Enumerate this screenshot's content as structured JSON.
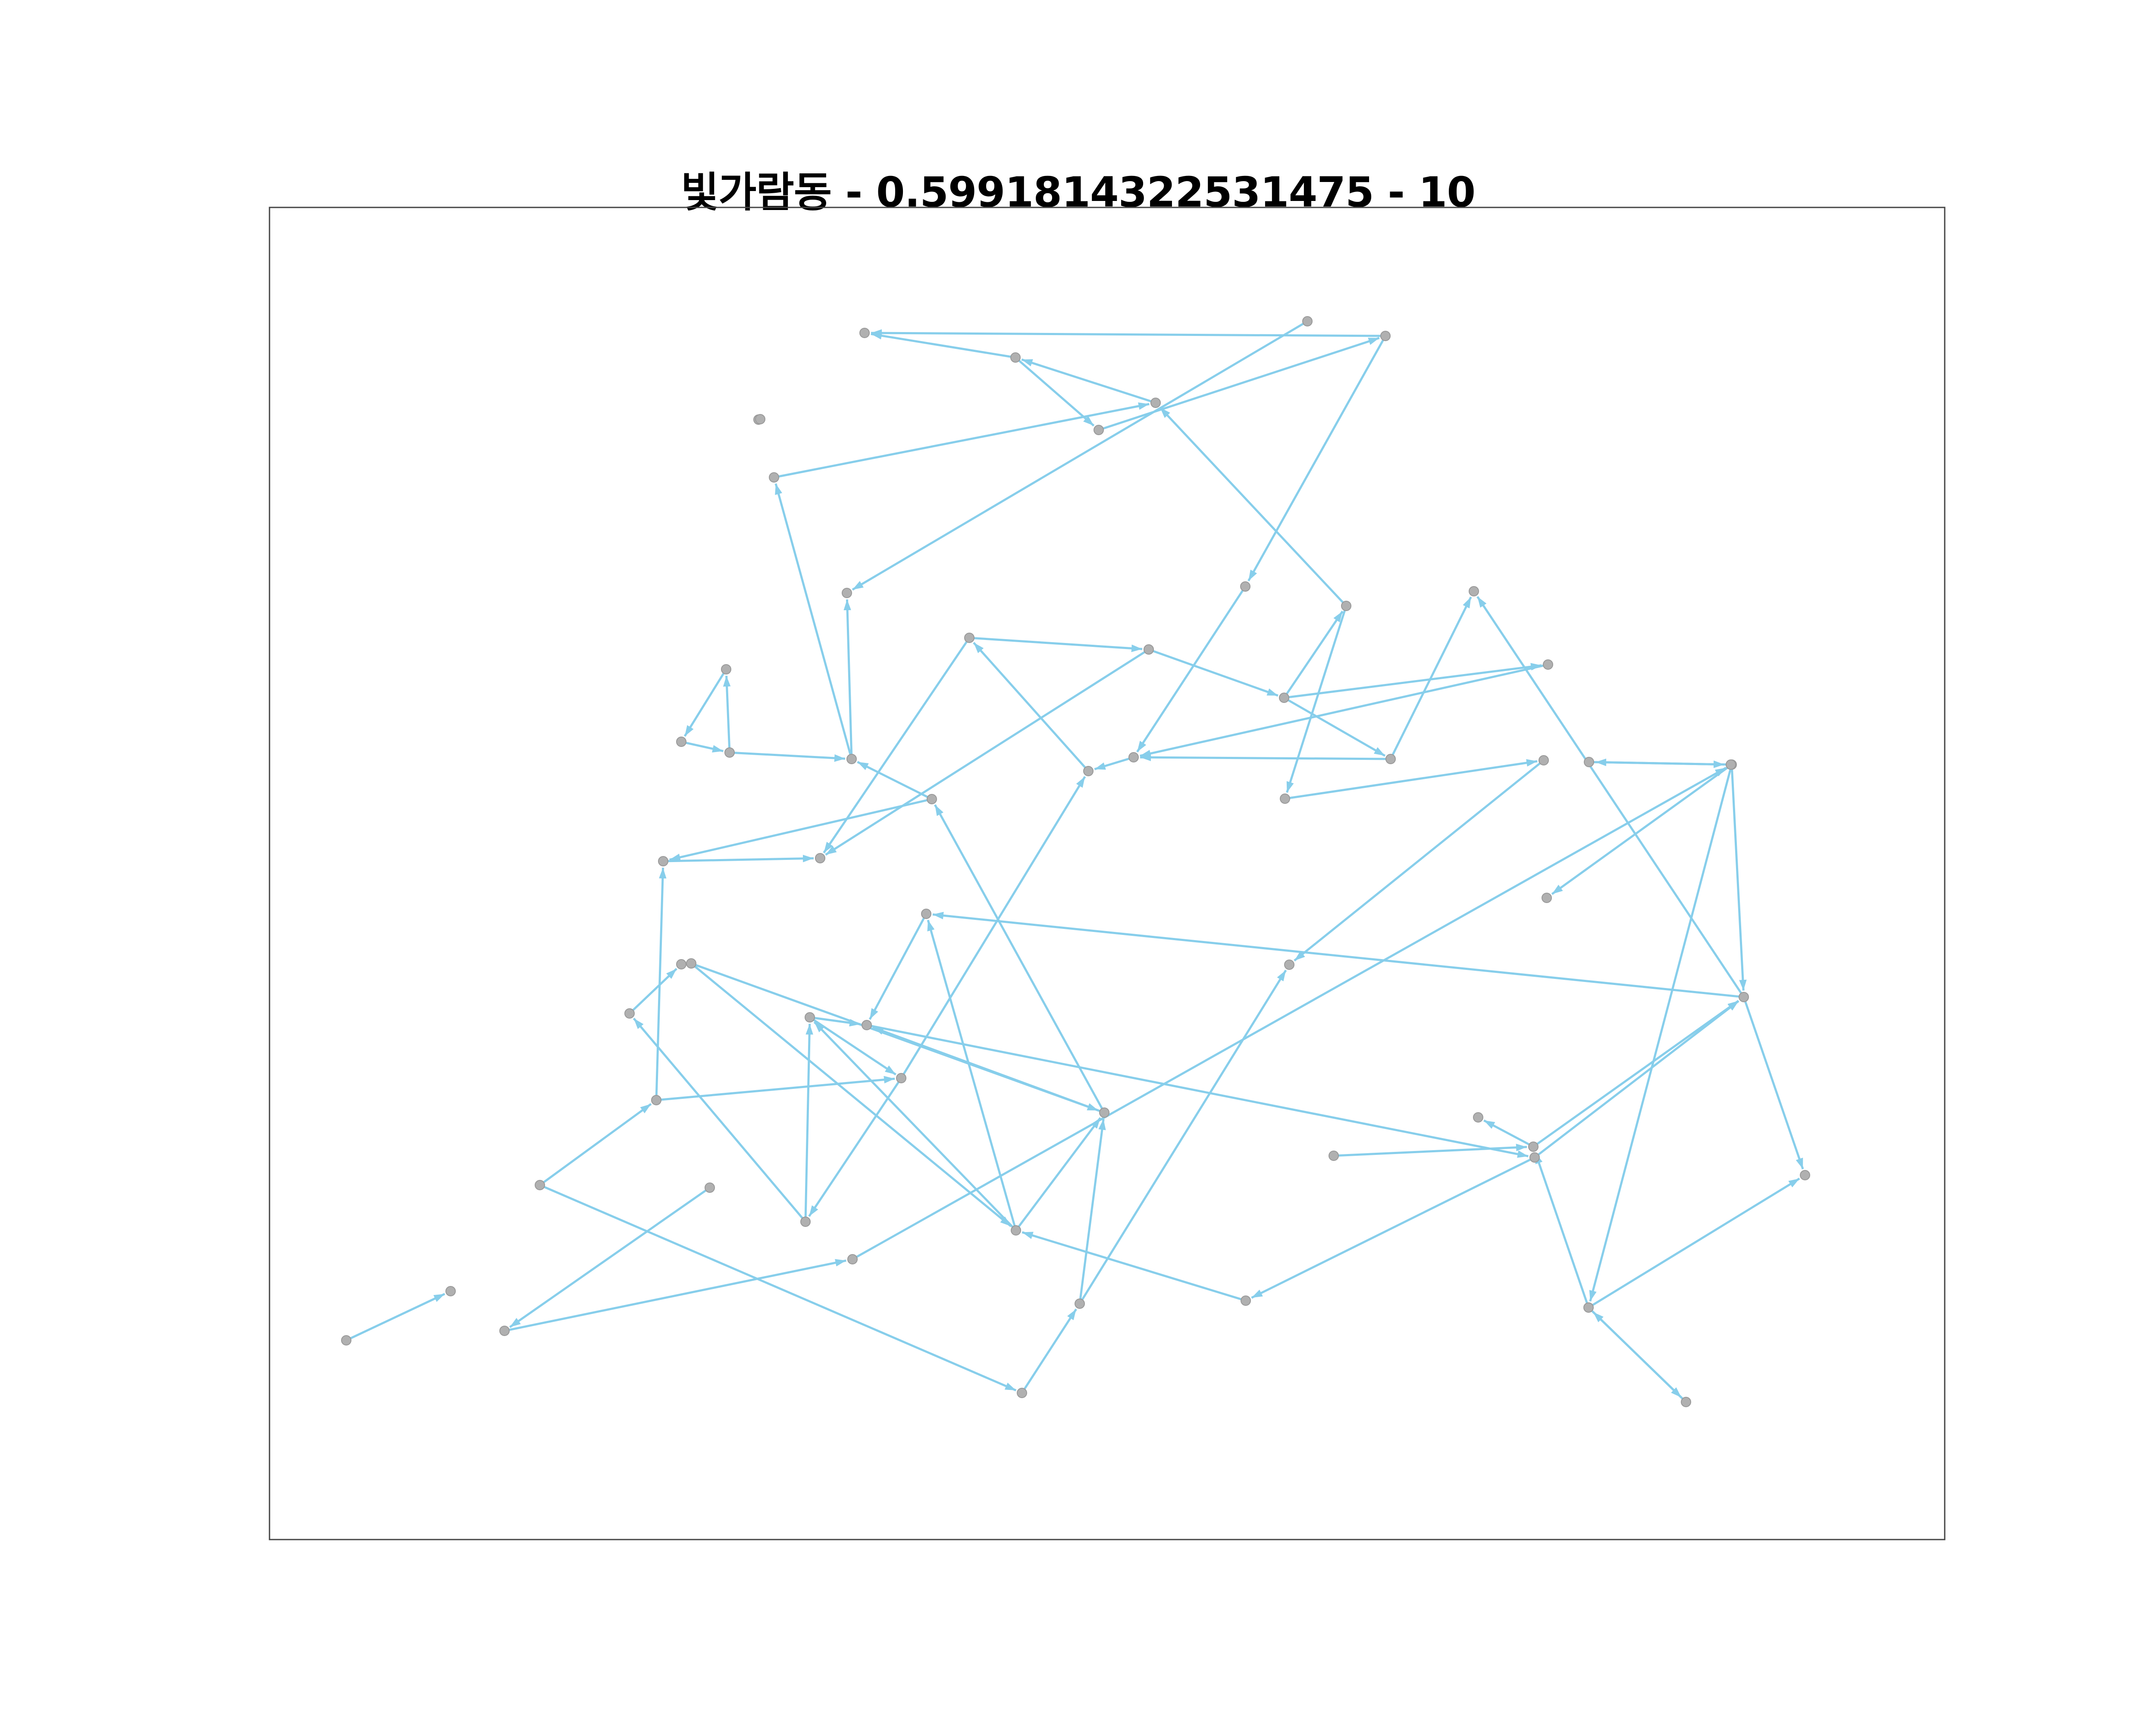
{
  "title": "빛가람동 - 0.5991814322531475 - 10",
  "colors": {
    "edge": "#87CEEB",
    "node_fill": "#b0b0b0",
    "node_stroke": "#999999",
    "frame": "#444444",
    "background": "#ffffff"
  },
  "graph": {
    "directed": true,
    "nodes": [
      "n1",
      "n2",
      "n3",
      "n4",
      "n5",
      "n6",
      "n7",
      "n8",
      "n9",
      "n10",
      "n11",
      "n12",
      "n13",
      "n14",
      "n15",
      "n16",
      "n17",
      "n18",
      "n19",
      "n20",
      "n21",
      "n22",
      "n23",
      "n24",
      "n25",
      "n26",
      "n27",
      "n28",
      "n29",
      "n30",
      "n31",
      "n32",
      "n33",
      "n34",
      "n35",
      "n36",
      "n37",
      "n38",
      "n39",
      "n40",
      "n41",
      "n42",
      "n43",
      "n44",
      "n45",
      "n46",
      "n47",
      "n48",
      "n49",
      "n50",
      "n51",
      "n52",
      "n53",
      "n54",
      "n55",
      "n56",
      "n57",
      "n58",
      "n59",
      "n60",
      "n61",
      "n62"
    ],
    "edges": [
      [
        "n3",
        "n1"
      ],
      [
        "n3",
        "n4"
      ],
      [
        "n5",
        "n3"
      ],
      [
        "n2",
        "n5"
      ],
      [
        "n4",
        "n8"
      ],
      [
        "n8",
        "n1"
      ],
      [
        "n8",
        "n9"
      ],
      [
        "n21",
        "n5"
      ],
      [
        "n7",
        "n12"
      ],
      [
        "n9",
        "n18"
      ],
      [
        "n15",
        "n16"
      ],
      [
        "n16",
        "n20"
      ],
      [
        "n15",
        "n17"
      ],
      [
        "n16",
        "n17"
      ],
      [
        "n18",
        "n19"
      ],
      [
        "n19",
        "n15"
      ],
      [
        "n22",
        "n18"
      ],
      [
        "n27",
        "n18"
      ],
      [
        "n27",
        "n23"
      ],
      [
        "n20",
        "n21"
      ],
      [
        "n20",
        "n22"
      ],
      [
        "n20",
        "n27"
      ],
      [
        "n21",
        "n24"
      ],
      [
        "n24",
        "n26"
      ],
      [
        "n26",
        "n25"
      ],
      [
        "n29",
        "n28"
      ],
      [
        "n29",
        "n14"
      ],
      [
        "n28",
        "n17"
      ],
      [
        "n11",
        "n13"
      ],
      [
        "n10",
        "n11"
      ],
      [
        "n13",
        "n10"
      ],
      [
        "n13",
        "n14"
      ],
      [
        "n14",
        "n2"
      ],
      [
        "n14",
        "n12"
      ],
      [
        "n31",
        "n30"
      ],
      [
        "n42",
        "n31"
      ],
      [
        "n42",
        "n33"
      ],
      [
        "n36",
        "n33"
      ],
      [
        "n36",
        "n37"
      ],
      [
        "n36",
        "n38"
      ],
      [
        "n37",
        "n29"
      ],
      [
        "n38",
        "n34"
      ],
      [
        "n45",
        "n38"
      ],
      [
        "n35",
        "n42"
      ],
      [
        "n33",
        "n35"
      ],
      [
        "n33",
        "n34"
      ],
      [
        "n37",
        "n34"
      ],
      [
        "n35",
        "n19"
      ],
      [
        "n44",
        "n25"
      ],
      [
        "n44",
        "n37"
      ],
      [
        "n32",
        "n37"
      ],
      [
        "n32",
        "n36"
      ],
      [
        "n43",
        "n45"
      ],
      [
        "n49",
        "n45"
      ],
      [
        "n57",
        "n49"
      ],
      [
        "n43",
        "n39"
      ],
      [
        "n34",
        "n43"
      ],
      [
        "n40",
        "n35"
      ],
      [
        "n40",
        "n28"
      ],
      [
        "n39",
        "n36"
      ],
      [
        "n41",
        "n40"
      ],
      [
        "n45",
        "n47"
      ],
      [
        "n50",
        "n49"
      ],
      [
        "n49",
        "n48"
      ],
      [
        "n41",
        "n46"
      ],
      [
        "n46",
        "n44"
      ],
      [
        "n51",
        "n50"
      ],
      [
        "n50",
        "n47"
      ],
      [
        "n50",
        "n51"
      ],
      [
        "n53",
        "n50"
      ],
      [
        "n53",
        "n52"
      ],
      [
        "n53",
        "n54"
      ],
      [
        "n53",
        "n45"
      ],
      [
        "n55",
        "n53"
      ],
      [
        "n56",
        "n58"
      ],
      [
        "n58",
        "n55"
      ],
      [
        "n60",
        "n59"
      ],
      [
        "n45",
        "n23"
      ],
      [
        "n52",
        "n61"
      ]
    ]
  }
}
